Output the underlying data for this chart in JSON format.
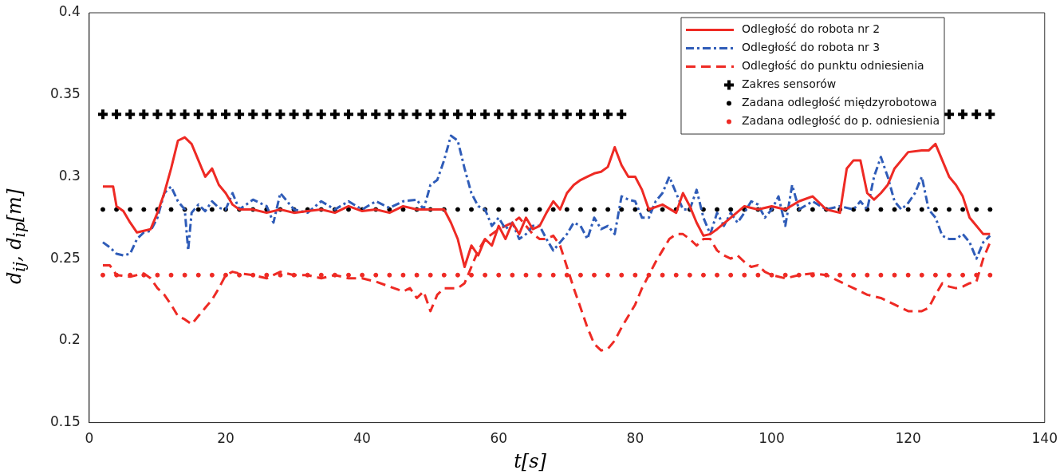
{
  "chart_data": {
    "type": "line",
    "xlabel": "t[s]",
    "ylabel": "d$_{ij}$, d$_{ip}$[m]",
    "xlim": [
      0,
      140
    ],
    "xticks": [
      0,
      20,
      40,
      60,
      80,
      100,
      120,
      140
    ],
    "ylim": [
      0.15,
      0.4
    ],
    "yticks": [
      0.15,
      0.2,
      0.25,
      0.3,
      0.35,
      0.4
    ],
    "grid": false,
    "legend": "top right",
    "series": [
      {
        "name": "Odległość do robota nr 2",
        "color": "#ee2a24",
        "line_style": "solid",
        "marker": "none",
        "x": [
          2,
          3.5,
          4,
          5,
          6,
          7,
          8,
          9,
          10,
          11,
          12,
          13,
          14,
          15,
          16,
          17,
          18,
          19,
          20,
          21,
          22,
          24,
          26,
          28,
          30,
          32,
          34,
          36,
          38,
          40,
          42,
          44,
          46,
          48,
          50,
          52,
          53,
          54,
          55,
          56,
          57,
          58,
          59,
          60,
          61,
          62,
          63,
          64,
          65,
          66,
          67,
          68,
          69,
          70,
          71,
          72,
          73,
          74,
          75,
          76,
          77,
          78,
          79,
          80,
          81,
          82,
          84,
          86,
          87,
          88,
          89,
          90,
          91,
          92,
          94,
          96,
          98,
          100,
          102,
          104,
          106,
          108,
          110,
          111,
          112,
          113,
          114,
          115,
          116,
          117,
          118,
          120,
          122,
          123,
          124,
          125,
          126,
          127,
          128,
          129,
          130,
          131,
          132
        ],
        "values": [
          0.294,
          0.294,
          0.282,
          0.279,
          0.272,
          0.266,
          0.267,
          0.268,
          0.278,
          0.29,
          0.305,
          0.322,
          0.324,
          0.32,
          0.31,
          0.3,
          0.305,
          0.295,
          0.29,
          0.283,
          0.28,
          0.28,
          0.278,
          0.28,
          0.278,
          0.279,
          0.28,
          0.278,
          0.282,
          0.279,
          0.28,
          0.278,
          0.282,
          0.28,
          0.28,
          0.28,
          0.272,
          0.262,
          0.245,
          0.258,
          0.252,
          0.262,
          0.258,
          0.27,
          0.262,
          0.272,
          0.265,
          0.275,
          0.268,
          0.27,
          0.278,
          0.285,
          0.28,
          0.29,
          0.295,
          0.298,
          0.3,
          0.302,
          0.303,
          0.306,
          0.318,
          0.307,
          0.3,
          0.3,
          0.292,
          0.28,
          0.283,
          0.278,
          0.29,
          0.282,
          0.272,
          0.264,
          0.265,
          0.268,
          0.275,
          0.282,
          0.28,
          0.282,
          0.28,
          0.285,
          0.288,
          0.28,
          0.278,
          0.305,
          0.31,
          0.31,
          0.29,
          0.286,
          0.29,
          0.295,
          0.305,
          0.315,
          0.316,
          0.316,
          0.32,
          0.31,
          0.3,
          0.295,
          0.288,
          0.275,
          0.27,
          0.265,
          0.265
        ]
      },
      {
        "name": "Odległość do robota nr 3",
        "color": "#2f5cb8",
        "line_style": "dashdot",
        "marker": "none",
        "x": [
          2,
          3,
          4,
          5,
          6,
          7,
          8,
          9,
          10,
          11,
          12,
          13,
          14,
          14.5,
          15,
          16,
          17,
          18,
          19,
          20,
          21,
          22,
          24,
          26,
          27,
          28,
          29,
          30,
          32,
          34,
          36,
          38,
          40,
          42,
          44,
          46,
          48,
          49,
          50,
          51,
          52,
          53,
          54,
          55,
          56,
          57,
          58,
          59,
          60,
          61,
          62,
          63,
          64,
          65,
          66,
          67,
          68,
          69,
          70,
          71,
          72,
          73,
          74,
          75,
          76,
          77,
          78,
          79,
          80,
          81,
          82,
          83,
          84,
          85,
          86,
          87,
          88,
          89,
          90,
          91,
          92,
          93,
          94,
          95,
          96,
          97,
          98,
          99,
          100,
          101,
          102,
          103,
          104,
          106,
          108,
          110,
          112,
          113,
          114,
          115,
          116,
          117,
          118,
          119,
          120,
          121,
          122,
          123,
          124,
          125,
          126,
          127,
          128,
          129,
          130,
          131,
          132
        ],
        "values": [
          0.26,
          0.257,
          0.253,
          0.252,
          0.253,
          0.262,
          0.266,
          0.267,
          0.275,
          0.29,
          0.294,
          0.285,
          0.28,
          0.255,
          0.278,
          0.283,
          0.279,
          0.285,
          0.281,
          0.28,
          0.29,
          0.28,
          0.286,
          0.282,
          0.272,
          0.29,
          0.285,
          0.28,
          0.278,
          0.285,
          0.28,
          0.285,
          0.28,
          0.285,
          0.281,
          0.285,
          0.286,
          0.28,
          0.295,
          0.298,
          0.31,
          0.325,
          0.322,
          0.305,
          0.29,
          0.282,
          0.28,
          0.27,
          0.275,
          0.268,
          0.272,
          0.262,
          0.265,
          0.27,
          0.27,
          0.262,
          0.255,
          0.26,
          0.265,
          0.272,
          0.27,
          0.262,
          0.275,
          0.268,
          0.27,
          0.265,
          0.288,
          0.286,
          0.285,
          0.275,
          0.275,
          0.285,
          0.29,
          0.3,
          0.29,
          0.28,
          0.28,
          0.292,
          0.275,
          0.265,
          0.278,
          0.27,
          0.278,
          0.272,
          0.278,
          0.285,
          0.283,
          0.275,
          0.28,
          0.288,
          0.27,
          0.295,
          0.28,
          0.285,
          0.28,
          0.282,
          0.28,
          0.285,
          0.28,
          0.3,
          0.312,
          0.3,
          0.285,
          0.28,
          0.284,
          0.29,
          0.3,
          0.28,
          0.275,
          0.264,
          0.262,
          0.262,
          0.265,
          0.26,
          0.25,
          0.26,
          0.264
        ]
      },
      {
        "name": "Odległość do punktu odniesienia",
        "color": "#ee2a24",
        "line_style": "dashed",
        "marker": "none",
        "x": [
          2,
          3,
          4,
          6,
          8,
          9,
          10,
          11,
          12,
          13,
          14,
          15,
          16,
          17,
          18,
          19,
          20,
          21,
          22,
          24,
          26,
          28,
          30,
          32,
          34,
          36,
          38,
          40,
          42,
          44,
          46,
          47,
          48,
          49,
          50,
          51,
          52,
          53,
          54,
          55,
          56,
          57,
          58,
          59,
          60,
          61,
          62,
          63,
          64,
          65,
          66,
          67,
          68,
          69,
          70,
          71,
          72,
          73,
          74,
          75,
          76,
          77,
          78,
          79,
          80,
          81,
          82,
          83,
          84,
          85,
          86,
          87,
          88,
          89,
          90,
          91,
          92,
          93,
          94,
          95,
          96,
          97,
          98,
          99,
          100,
          102,
          104,
          106,
          108,
          110,
          112,
          114,
          116,
          118,
          120,
          122,
          123,
          124,
          125,
          126,
          127,
          128,
          129,
          130,
          131,
          132
        ],
        "values": [
          0.246,
          0.246,
          0.24,
          0.239,
          0.241,
          0.238,
          0.232,
          0.228,
          0.222,
          0.215,
          0.213,
          0.21,
          0.215,
          0.22,
          0.225,
          0.232,
          0.24,
          0.242,
          0.241,
          0.24,
          0.238,
          0.242,
          0.24,
          0.24,
          0.238,
          0.24,
          0.238,
          0.238,
          0.236,
          0.233,
          0.23,
          0.232,
          0.226,
          0.23,
          0.218,
          0.228,
          0.232,
          0.232,
          0.232,
          0.235,
          0.245,
          0.255,
          0.262,
          0.265,
          0.268,
          0.27,
          0.272,
          0.275,
          0.27,
          0.265,
          0.262,
          0.262,
          0.264,
          0.258,
          0.245,
          0.232,
          0.22,
          0.208,
          0.198,
          0.194,
          0.195,
          0.2,
          0.208,
          0.215,
          0.222,
          0.232,
          0.24,
          0.248,
          0.255,
          0.262,
          0.265,
          0.265,
          0.262,
          0.258,
          0.262,
          0.262,
          0.255,
          0.252,
          0.25,
          0.252,
          0.248,
          0.245,
          0.246,
          0.242,
          0.24,
          0.238,
          0.24,
          0.241,
          0.24,
          0.236,
          0.232,
          0.228,
          0.226,
          0.222,
          0.218,
          0.218,
          0.22,
          0.228,
          0.235,
          0.233,
          0.232,
          0.233,
          0.235,
          0.236,
          0.25,
          0.26
        ]
      },
      {
        "name": "Zakres sensorów",
        "type": "scatter",
        "color": "#000000",
        "marker": "cross",
        "x": [
          2,
          4,
          6,
          8,
          10,
          12,
          14,
          16,
          18,
          20,
          22,
          24,
          26,
          28,
          30,
          32,
          34,
          36,
          38,
          40,
          42,
          44,
          46,
          48,
          50,
          52,
          54,
          56,
          58,
          60,
          62,
          64,
          66,
          68,
          70,
          72,
          74,
          76,
          78,
          80,
          82,
          84,
          86,
          88,
          90,
          92,
          94,
          96,
          98,
          100,
          102,
          104,
          106,
          108,
          110,
          112,
          114,
          116,
          118,
          120,
          122,
          124,
          126,
          128,
          130,
          132
        ],
        "values": [
          0.338,
          0.338,
          0.338,
          0.338,
          0.338,
          0.338,
          0.338,
          0.338,
          0.338,
          0.338,
          0.338,
          0.338,
          0.338,
          0.338,
          0.338,
          0.338,
          0.338,
          0.338,
          0.338,
          0.338,
          0.338,
          0.338,
          0.338,
          0.338,
          0.338,
          0.338,
          0.338,
          0.338,
          0.338,
          0.338,
          0.338,
          0.338,
          0.338,
          0.338,
          0.338,
          0.338,
          0.338,
          0.338,
          0.338,
          null,
          null,
          null,
          null,
          null,
          null,
          null,
          null,
          null,
          null,
          null,
          null,
          null,
          null,
          null,
          null,
          null,
          null,
          null,
          null,
          null,
          null,
          null,
          0.338,
          0.338,
          0.338,
          0.338
        ]
      },
      {
        "name": "Zadana odległość międzyrobotowa",
        "type": "scatter",
        "color": "#000000",
        "marker": "circle",
        "x": [
          2,
          4,
          6,
          8,
          10,
          12,
          14,
          16,
          18,
          20,
          22,
          24,
          26,
          28,
          30,
          32,
          34,
          36,
          38,
          40,
          42,
          44,
          46,
          48,
          50,
          52,
          54,
          56,
          58,
          60,
          62,
          64,
          66,
          68,
          70,
          72,
          74,
          76,
          78,
          80,
          82,
          84,
          86,
          88,
          90,
          92,
          94,
          96,
          98,
          100,
          102,
          104,
          106,
          108,
          110,
          112,
          114,
          116,
          118,
          120,
          122,
          124,
          126,
          128,
          130,
          132
        ],
        "values": [
          0.28,
          0.28,
          0.28,
          0.28,
          0.28,
          0.28,
          0.28,
          0.28,
          0.28,
          0.28,
          0.28,
          0.28,
          0.28,
          0.28,
          0.28,
          0.28,
          0.28,
          0.28,
          0.28,
          0.28,
          0.28,
          0.28,
          0.28,
          0.28,
          0.28,
          0.28,
          0.28,
          0.28,
          0.28,
          0.28,
          0.28,
          0.28,
          0.28,
          0.28,
          0.28,
          0.28,
          0.28,
          0.28,
          0.28,
          0.28,
          0.28,
          0.28,
          0.28,
          0.28,
          0.28,
          0.28,
          0.28,
          0.28,
          0.28,
          0.28,
          0.28,
          0.28,
          0.28,
          0.28,
          0.28,
          0.28,
          0.28,
          0.28,
          0.28,
          0.28,
          0.28,
          0.28,
          0.28,
          0.28,
          0.28,
          0.28
        ]
      },
      {
        "name": "Zadana odległość do p. odniesienia",
        "type": "scatter",
        "color": "#ee2a24",
        "marker": "circle",
        "x": [
          2,
          4,
          6,
          8,
          10,
          12,
          14,
          16,
          18,
          20,
          22,
          24,
          26,
          28,
          30,
          32,
          34,
          36,
          38,
          40,
          42,
          44,
          46,
          48,
          50,
          52,
          54,
          56,
          58,
          60,
          62,
          64,
          66,
          68,
          70,
          72,
          74,
          76,
          78,
          80,
          82,
          84,
          86,
          88,
          90,
          92,
          94,
          96,
          98,
          100,
          102,
          104,
          106,
          108,
          110,
          112,
          114,
          116,
          118,
          120,
          122,
          124,
          126,
          128,
          130,
          132
        ],
        "values": [
          0.24,
          0.24,
          0.24,
          0.24,
          0.24,
          0.24,
          0.24,
          0.24,
          0.24,
          0.24,
          0.24,
          0.24,
          0.24,
          0.24,
          0.24,
          0.24,
          0.24,
          0.24,
          0.24,
          0.24,
          0.24,
          0.24,
          0.24,
          0.24,
          0.24,
          0.24,
          0.24,
          0.24,
          0.24,
          0.24,
          0.24,
          0.24,
          0.24,
          0.24,
          0.24,
          0.24,
          0.24,
          0.24,
          0.24,
          0.24,
          0.24,
          0.24,
          0.24,
          0.24,
          0.24,
          0.24,
          0.24,
          0.24,
          0.24,
          0.24,
          0.24,
          0.24,
          0.24,
          0.24,
          0.24,
          0.24,
          0.24,
          0.24,
          0.24,
          0.24,
          0.24,
          0.24,
          0.24,
          0.24,
          0.24,
          0.24
        ]
      }
    ]
  }
}
